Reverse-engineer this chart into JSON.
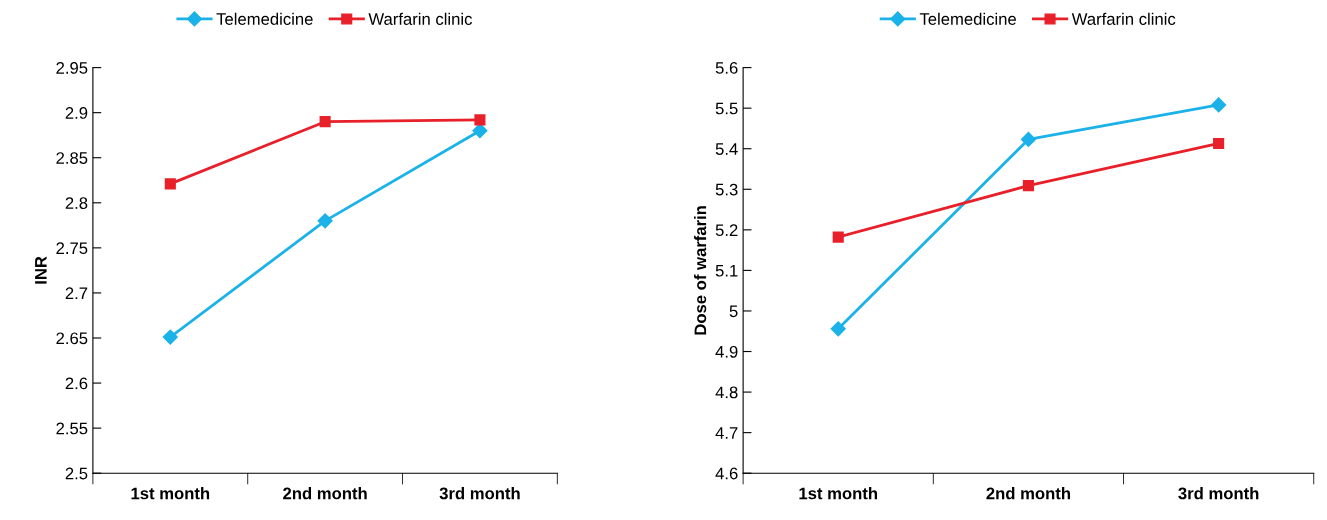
{
  "chart_data": [
    {
      "type": "line",
      "ylabel": "INR",
      "categories": [
        "1st month",
        "2nd month",
        "3rd month"
      ],
      "ylim": [
        2.5,
        2.95
      ],
      "yticks": [
        2.5,
        2.55,
        2.6,
        2.65,
        2.7,
        2.75,
        2.8,
        2.85,
        2.9,
        2.95
      ],
      "legend": "top",
      "grid": false,
      "series": [
        {
          "name": "Telemedicine",
          "color": "#1ab2e8",
          "marker": "diamond",
          "values": [
            2.651,
            2.78,
            2.88
          ]
        },
        {
          "name": "Warfarin clinic",
          "color": "#e8202a",
          "marker": "square",
          "values": [
            2.821,
            2.89,
            2.892
          ]
        }
      ]
    },
    {
      "type": "line",
      "ylabel": "Dose of warfarin",
      "categories": [
        "1st month",
        "2nd month",
        "3rd month"
      ],
      "ylim": [
        4.6,
        5.6
      ],
      "yticks": [
        4.6,
        4.7,
        4.8,
        4.9,
        5,
        5.1,
        5.2,
        5.3,
        5.4,
        5.5,
        5.6
      ],
      "legend": "top",
      "grid": false,
      "series": [
        {
          "name": "Telemedicine",
          "color": "#1ab2e8",
          "marker": "diamond",
          "values": [
            4.956,
            5.423,
            5.508
          ]
        },
        {
          "name": "Warfarin clinic",
          "color": "#e8202a",
          "marker": "square",
          "values": [
            5.182,
            5.309,
            5.413
          ]
        }
      ]
    }
  ]
}
